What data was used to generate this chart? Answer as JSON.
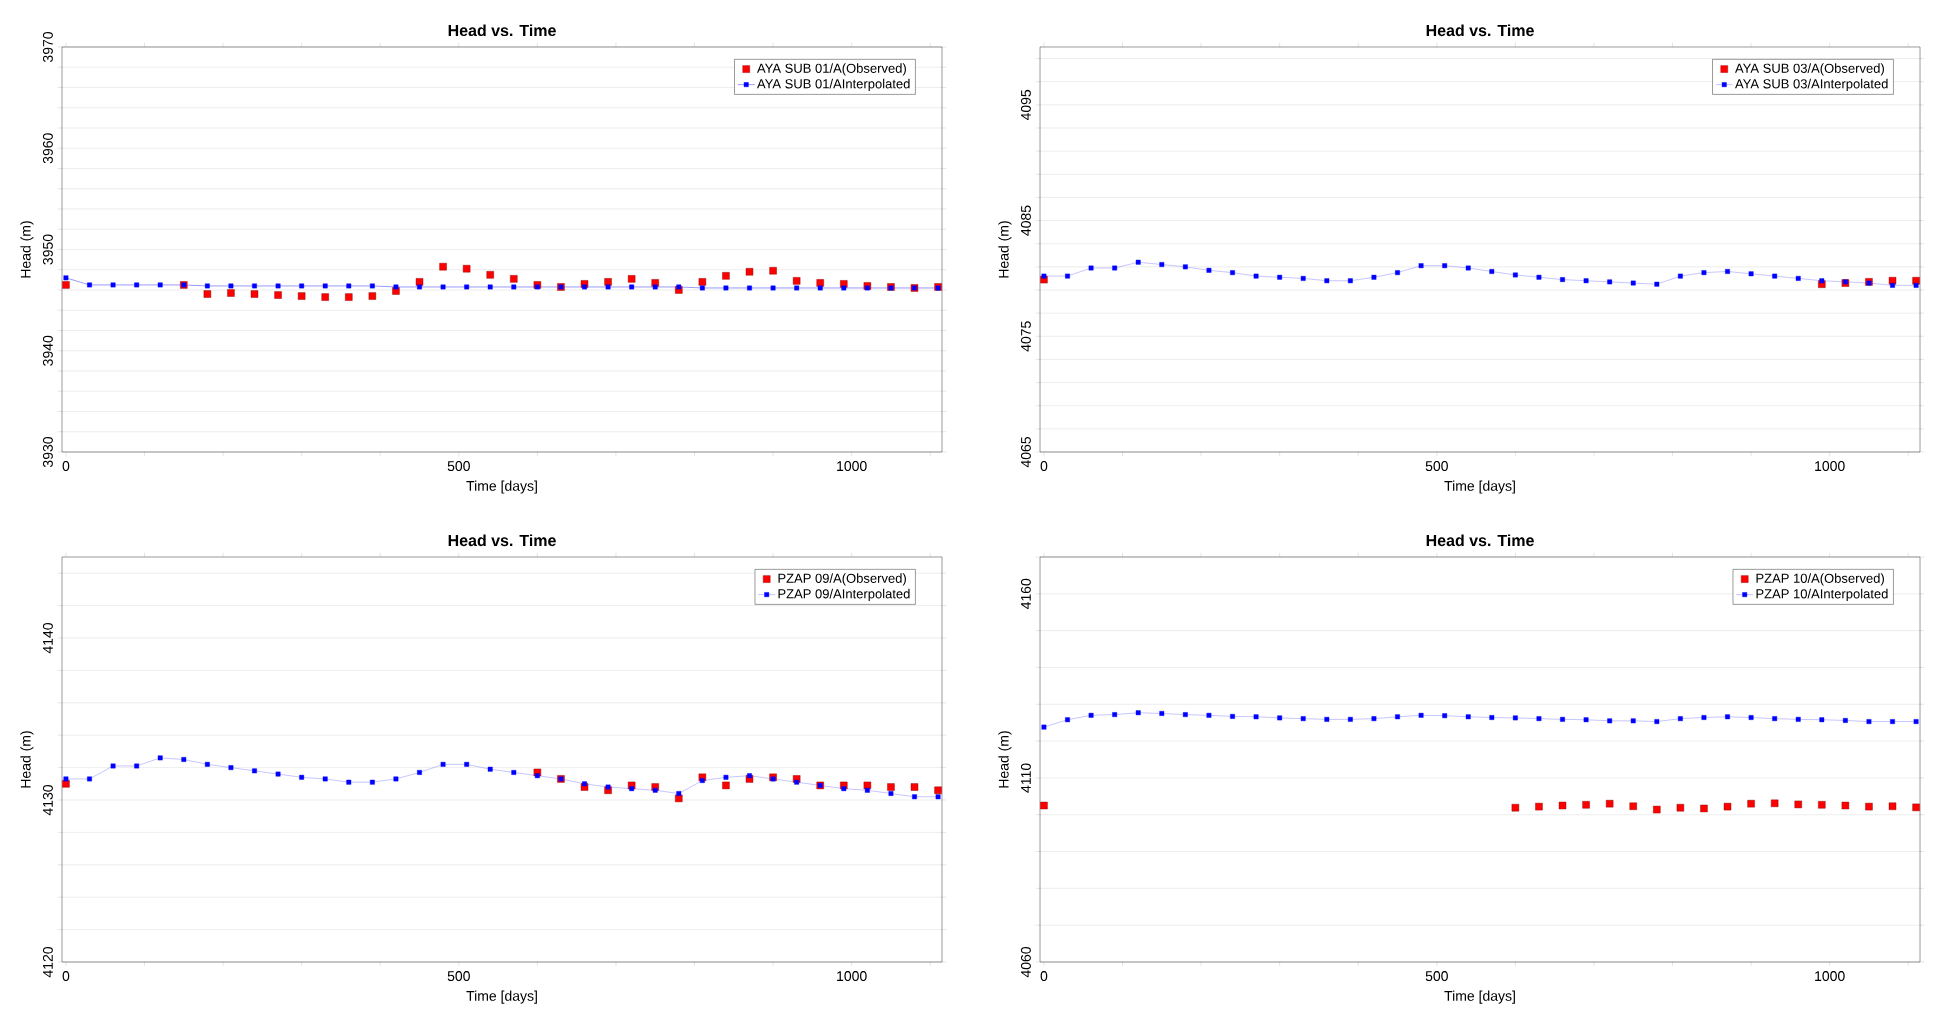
{
  "chart_data": [
    {
      "type": "line",
      "title": "Head vs. Time",
      "xlabel": "Time  [days]",
      "ylabel": "Head (m)",
      "xlim": [
        -5,
        1115
      ],
      "ylim": [
        3930,
        3970
      ],
      "marker": "square",
      "grid": "y",
      "legend": "top right",
      "xticks": [
        0,
        {
          "value": 100,
          "label": null
        },
        {
          "value": 200,
          "label": null
        },
        {
          "value": 300,
          "label": null
        },
        {
          "value": 400,
          "label": null
        },
        500,
        {
          "value": 600,
          "label": null
        },
        {
          "value": 700,
          "label": null
        },
        {
          "value": 800,
          "label": null
        },
        {
          "value": 900,
          "label": null
        },
        1000,
        {
          "value": 1100,
          "label": null
        }
      ],
      "yticks": [
        3930,
        {
          "value": 3932,
          "label": null
        },
        {
          "value": 3934,
          "label": null
        },
        {
          "value": 3936,
          "label": null
        },
        {
          "value": 3938,
          "label": null
        },
        3940,
        {
          "value": 3942,
          "label": null
        },
        {
          "value": 3944,
          "label": null
        },
        {
          "value": 3946,
          "label": null
        },
        {
          "value": 3948,
          "label": null
        },
        3950,
        {
          "value": 3952,
          "label": null
        },
        {
          "value": 3954,
          "label": null
        },
        {
          "value": 3956,
          "label": null
        },
        {
          "value": 3958,
          "label": null
        },
        3960,
        {
          "value": 3962,
          "label": null
        },
        {
          "value": 3964,
          "label": null
        },
        {
          "value": 3966,
          "label": null
        },
        {
          "value": 3968,
          "label": null
        },
        3970
      ],
      "series": [
        {
          "name": "AYA SUB 01/A(Observed)",
          "type": "scatter",
          "color": "#ff0000",
          "x": [
            0,
            150,
            180,
            210,
            240,
            270,
            300,
            330,
            360,
            390,
            420,
            450,
            480,
            510,
            540,
            570,
            600,
            630,
            660,
            690,
            720,
            750,
            780,
            810,
            840,
            870,
            900,
            930,
            960,
            990,
            1020,
            1050,
            1080,
            1110
          ],
          "values": [
            3946.5,
            3946.5,
            3945.6,
            3945.7,
            3945.6,
            3945.5,
            3945.4,
            3945.3,
            3945.3,
            3945.4,
            3945.9,
            3946.8,
            3948.3,
            3948.1,
            3947.5,
            3947.1,
            3946.5,
            3946.3,
            3946.6,
            3946.8,
            3947.1,
            3946.7,
            3946.0,
            3946.8,
            3947.4,
            3947.8,
            3947.9,
            3946.9,
            3946.7,
            3946.6,
            3946.4,
            3946.3,
            3946.2,
            3946.3
          ]
        },
        {
          "name": "AYA SUB 01/AInterpolated",
          "type": "line",
          "color": "#0000ff",
          "x": [
            0,
            30,
            60,
            90,
            120,
            150,
            180,
            210,
            240,
            270,
            300,
            330,
            360,
            390,
            420,
            450,
            480,
            510,
            540,
            570,
            600,
            630,
            660,
            690,
            720,
            750,
            780,
            810,
            840,
            870,
            900,
            930,
            960,
            990,
            1020,
            1050,
            1080,
            1110
          ],
          "values": [
            3947.2,
            3946.5,
            3946.5,
            3946.5,
            3946.5,
            3946.5,
            3946.4,
            3946.4,
            3946.4,
            3946.4,
            3946.4,
            3946.4,
            3946.4,
            3946.4,
            3946.3,
            3946.3,
            3946.3,
            3946.3,
            3946.3,
            3946.3,
            3946.3,
            3946.3,
            3946.3,
            3946.3,
            3946.3,
            3946.3,
            3946.3,
            3946.2,
            3946.2,
            3946.2,
            3946.2,
            3946.2,
            3946.2,
            3946.2,
            3946.2,
            3946.2,
            3946.2,
            3946.2
          ]
        }
      ]
    },
    {
      "type": "line",
      "title": "Head vs. Time",
      "xlabel": "Time  [days]",
      "ylabel": "Head (m)",
      "xlim": [
        -5,
        1115
      ],
      "ylim": [
        4065,
        4100
      ],
      "marker": "square",
      "grid": "y",
      "legend": "top right",
      "xticks": [
        0,
        {
          "value": 100,
          "label": null
        },
        {
          "value": 200,
          "label": null
        },
        {
          "value": 300,
          "label": null
        },
        {
          "value": 400,
          "label": null
        },
        500,
        {
          "value": 600,
          "label": null
        },
        {
          "value": 700,
          "label": null
        },
        {
          "value": 800,
          "label": null
        },
        {
          "value": 900,
          "label": null
        },
        1000,
        {
          "value": 1100,
          "label": null
        }
      ],
      "yticks": [
        4065,
        {
          "value": 4067,
          "label": null
        },
        {
          "value": 4069,
          "label": null
        },
        {
          "value": 4071,
          "label": null
        },
        {
          "value": 4073,
          "label": null
        },
        4075,
        {
          "value": 4077,
          "label": null
        },
        {
          "value": 4079,
          "label": null
        },
        {
          "value": 4081,
          "label": null
        },
        {
          "value": 4083,
          "label": null
        },
        4085,
        {
          "value": 4087,
          "label": null
        },
        {
          "value": 4089,
          "label": null
        },
        {
          "value": 4091,
          "label": null
        },
        {
          "value": 4093,
          "label": null
        },
        4095,
        {
          "value": 4097,
          "label": null
        },
        {
          "value": 4099,
          "label": null
        }
      ],
      "series": [
        {
          "name": "AYA SUB 03/A(Observed)",
          "type": "scatter",
          "color": "#ff0000",
          "x": [
            0,
            990,
            1020,
            1050,
            1080,
            1110
          ],
          "values": [
            4079.9,
            4079.5,
            4079.6,
            4079.7,
            4079.8,
            4079.8
          ]
        },
        {
          "name": "AYA SUB 03/AInterpolated",
          "type": "line",
          "color": "#7070ff",
          "x": [
            0,
            30,
            60,
            90,
            120,
            150,
            180,
            210,
            240,
            270,
            300,
            330,
            360,
            390,
            420,
            450,
            480,
            510,
            540,
            570,
            600,
            630,
            660,
            690,
            720,
            750,
            780,
            810,
            840,
            870,
            900,
            930,
            960,
            990,
            1020,
            1050,
            1080,
            1110
          ],
          "values": [
            4080.2,
            4080.2,
            4080.9,
            4080.9,
            4081.4,
            4081.2,
            4081.0,
            4080.7,
            4080.5,
            4080.2,
            4080.1,
            4080.0,
            4079.8,
            4079.8,
            4080.1,
            4080.5,
            4081.1,
            4081.1,
            4080.9,
            4080.6,
            4080.3,
            4080.1,
            4079.9,
            4079.8,
            4079.7,
            4079.6,
            4079.5,
            4080.2,
            4080.5,
            4080.6,
            4080.4,
            4080.2,
            4080.0,
            4079.8,
            4079.7,
            4079.6,
            4079.4,
            4079.4
          ]
        }
      ]
    },
    {
      "type": "line",
      "title": "Head vs. Time",
      "xlabel": "Time  [days]",
      "ylabel": "Head (m)",
      "xlim": [
        -5,
        1115
      ],
      "ylim": [
        4120,
        4145
      ],
      "marker": "square",
      "grid": "y",
      "legend": "top right",
      "xticks": [
        0,
        {
          "value": 100,
          "label": null
        },
        {
          "value": 200,
          "label": null
        },
        {
          "value": 300,
          "label": null
        },
        {
          "value": 400,
          "label": null
        },
        500,
        {
          "value": 600,
          "label": null
        },
        {
          "value": 700,
          "label": null
        },
        {
          "value": 800,
          "label": null
        },
        {
          "value": 900,
          "label": null
        },
        1000,
        {
          "value": 1100,
          "label": null
        }
      ],
      "yticks": [
        4120,
        {
          "value": 4122,
          "label": null
        },
        {
          "value": 4124,
          "label": null
        },
        {
          "value": 4126,
          "label": null
        },
        {
          "value": 4128,
          "label": null
        },
        4130,
        {
          "value": 4132,
          "label": null
        },
        {
          "value": 4134,
          "label": null
        },
        {
          "value": 4136,
          "label": null
        },
        {
          "value": 4138,
          "label": null
        },
        4140,
        {
          "value": 4142,
          "label": null
        },
        {
          "value": 4144,
          "label": null
        }
      ],
      "series": [
        {
          "name": "PZAP 09/A(Observed)",
          "type": "scatter",
          "color": "#ff0000",
          "x": [
            0,
            600,
            630,
            660,
            690,
            720,
            750,
            780,
            810,
            840,
            870,
            900,
            930,
            960,
            990,
            1020,
            1050,
            1080,
            1110
          ],
          "values": [
            4131.0,
            4131.7,
            4131.3,
            4130.8,
            4130.6,
            4130.9,
            4130.8,
            4130.1,
            4131.4,
            4130.9,
            4131.3,
            4131.4,
            4131.3,
            4130.9,
            4130.9,
            4130.9,
            4130.8,
            4130.8,
            4130.6
          ]
        },
        {
          "name": "PZAP 09/AInterpolated",
          "type": "line",
          "color": "#7070ff",
          "x": [
            0,
            30,
            60,
            90,
            120,
            150,
            180,
            210,
            240,
            270,
            300,
            330,
            360,
            390,
            420,
            450,
            480,
            510,
            540,
            570,
            600,
            630,
            660,
            690,
            720,
            750,
            780,
            810,
            840,
            870,
            900,
            930,
            960,
            990,
            1020,
            1050,
            1080,
            1110
          ],
          "values": [
            4131.3,
            4131.3,
            4132.1,
            4132.1,
            4132.6,
            4132.5,
            4132.2,
            4132.0,
            4131.8,
            4131.6,
            4131.4,
            4131.3,
            4131.1,
            4131.1,
            4131.3,
            4131.7,
            4132.2,
            4132.2,
            4131.9,
            4131.7,
            4131.5,
            4131.3,
            4131.0,
            4130.8,
            4130.7,
            4130.6,
            4130.4,
            4131.2,
            4131.4,
            4131.5,
            4131.3,
            4131.1,
            4130.9,
            4130.7,
            4130.6,
            4130.4,
            4130.2,
            4130.2
          ]
        }
      ]
    },
    {
      "type": "line",
      "title": "Head vs. Time",
      "xlabel": "Time  [days]",
      "ylabel": "Head (m)",
      "xlim": [
        -5,
        1115
      ],
      "ylim": [
        4060,
        4170
      ],
      "marker": "square",
      "grid": "y",
      "legend": "top right",
      "xticks": [
        0,
        {
          "value": 100,
          "label": null
        },
        {
          "value": 200,
          "label": null
        },
        {
          "value": 300,
          "label": null
        },
        {
          "value": 400,
          "label": null
        },
        500,
        {
          "value": 600,
          "label": null
        },
        {
          "value": 700,
          "label": null
        },
        {
          "value": 800,
          "label": null
        },
        {
          "value": 900,
          "label": null
        },
        1000,
        {
          "value": 1100,
          "label": null
        }
      ],
      "yticks": [
        4060,
        {
          "value": 4070,
          "label": null
        },
        {
          "value": 4080,
          "label": null
        },
        {
          "value": 4090,
          "label": null
        },
        {
          "value": 4100,
          "label": null
        },
        4110,
        {
          "value": 4120,
          "label": null
        },
        {
          "value": 4130,
          "label": null
        },
        {
          "value": 4140,
          "label": null
        },
        {
          "value": 4150,
          "label": null
        },
        4160,
        {
          "value": 4170,
          "label": null
        }
      ],
      "series": [
        {
          "name": "PZAP 10/A(Observed)",
          "type": "scatter",
          "color": "#ff0000",
          "x": [
            0,
            600,
            630,
            660,
            690,
            720,
            750,
            780,
            810,
            840,
            870,
            900,
            930,
            960,
            990,
            1020,
            1050,
            1080,
            1110
          ],
          "values": [
            4102.5,
            4101.9,
            4102.2,
            4102.5,
            4102.7,
            4103.0,
            4102.3,
            4101.4,
            4101.9,
            4101.7,
            4102.2,
            4103.0,
            4103.1,
            4102.8,
            4102.7,
            4102.5,
            4102.2,
            4102.3,
            4102.0
          ]
        },
        {
          "name": "PZAP 10/AInterpolated",
          "type": "line",
          "color": "#7070ff",
          "x": [
            0,
            30,
            60,
            90,
            120,
            150,
            180,
            210,
            240,
            270,
            300,
            330,
            360,
            390,
            420,
            450,
            480,
            510,
            540,
            570,
            600,
            630,
            660,
            690,
            720,
            750,
            780,
            810,
            840,
            870,
            900,
            930,
            960,
            990,
            1020,
            1050,
            1080,
            1110
          ],
          "values": [
            4123.8,
            4125.8,
            4127.0,
            4127.2,
            4127.7,
            4127.5,
            4127.2,
            4127.0,
            4126.7,
            4126.6,
            4126.3,
            4126.1,
            4125.9,
            4125.9,
            4126.1,
            4126.6,
            4127.0,
            4126.9,
            4126.6,
            4126.4,
            4126.3,
            4126.1,
            4125.9,
            4125.8,
            4125.5,
            4125.5,
            4125.3,
            4126.1,
            4126.4,
            4126.6,
            4126.4,
            4126.1,
            4125.9,
            4125.8,
            4125.6,
            4125.3,
            4125.3,
            4125.3
          ]
        }
      ]
    }
  ]
}
